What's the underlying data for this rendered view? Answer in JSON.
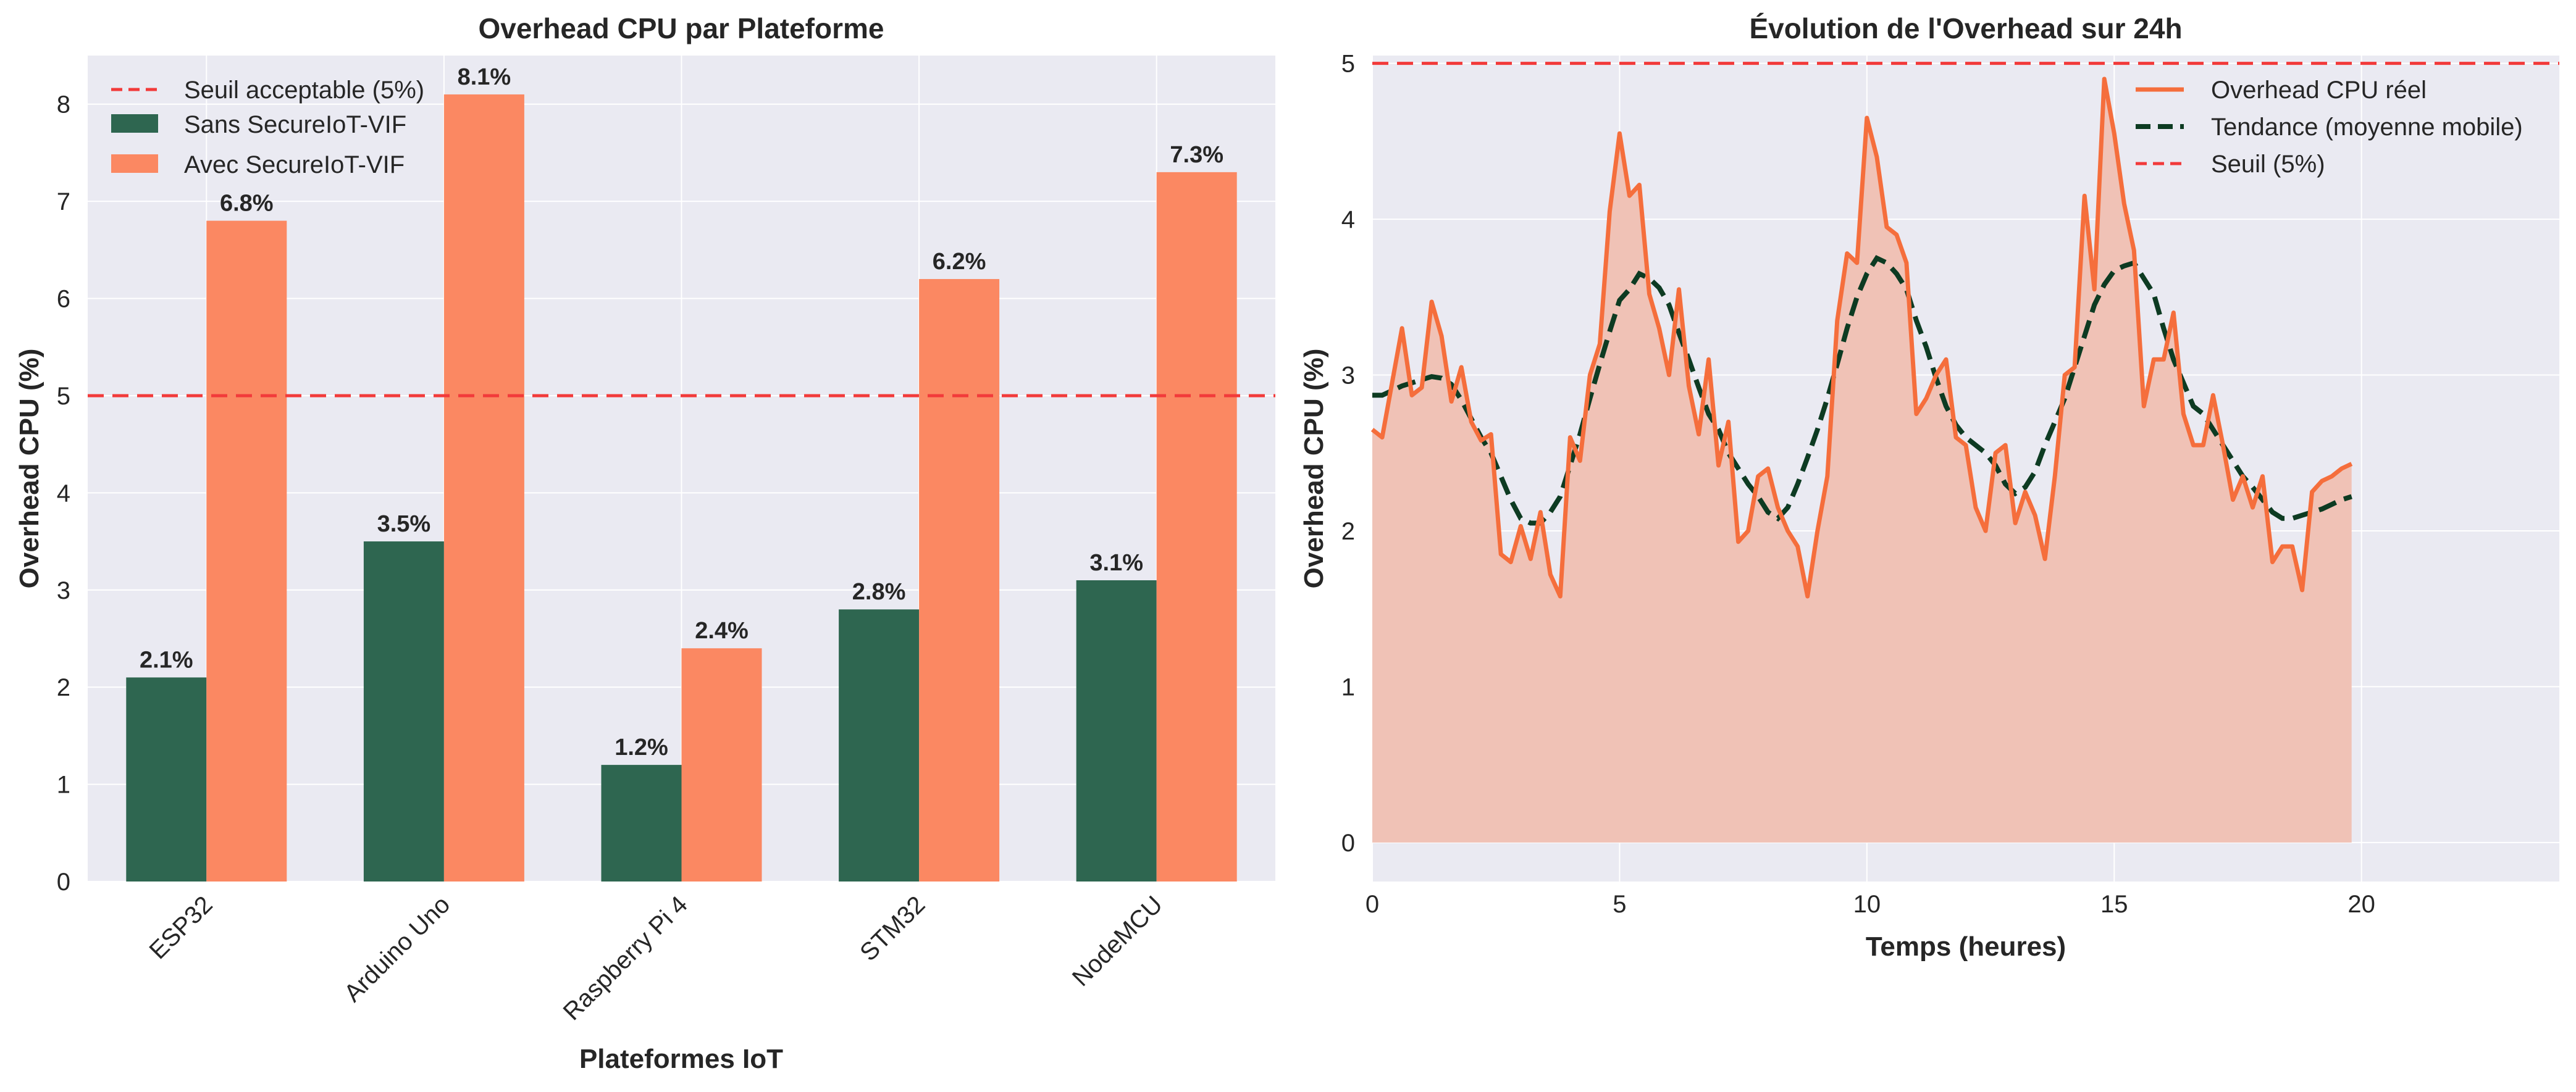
{
  "colors": {
    "axes_bg": "#eaeaf2",
    "grid": "#ffffff",
    "sans": "#2e6650",
    "avec": "#fb8862",
    "threshold": "#f23a3a",
    "overhead_line": "#f56e3c",
    "overhead_fill": "#f0c2b6",
    "trend": "#0d3b22"
  },
  "chart_data": [
    {
      "type": "bar",
      "title": "Overhead CPU par Plateforme",
      "xlabel": "Plateformes IoT",
      "ylabel": "Overhead CPU (%)",
      "ylim": [
        0,
        8.5
      ],
      "yticks": [
        "0",
        "1",
        "2",
        "3",
        "4",
        "5",
        "6",
        "7",
        "8"
      ],
      "categories": [
        "ESP32",
        "Arduino Uno",
        "Raspberry Pi 4",
        "STM32",
        "NodeMCU"
      ],
      "series": [
        {
          "name": "Sans SecureIoT-VIF",
          "values": [
            2.1,
            3.5,
            1.2,
            2.8,
            3.1
          ],
          "labels": [
            "2.1%",
            "3.5%",
            "1.2%",
            "2.8%",
            "3.1%"
          ]
        },
        {
          "name": "Avec SecureIoT-VIF",
          "values": [
            6.8,
            8.1,
            2.4,
            6.2,
            7.3
          ],
          "labels": [
            "6.8%",
            "8.1%",
            "2.4%",
            "6.2%",
            "7.3%"
          ]
        }
      ],
      "threshold": {
        "name": "Seuil acceptable (5%)",
        "value": 5
      },
      "legend_loc": "upper-left",
      "grid": true
    },
    {
      "type": "line",
      "title": "Évolution de l'Overhead sur 24h",
      "xlabel": "Temps (heures)",
      "ylabel": "Overhead CPU (%)",
      "xlim": [
        0,
        24
      ],
      "ylim": [
        -0.25,
        5.05
      ],
      "xticks": [
        "0",
        "5",
        "10",
        "15",
        "20"
      ],
      "yticks": [
        "0",
        "1",
        "2",
        "3",
        "4",
        "5"
      ],
      "x_start": 0,
      "x_step": 0.2,
      "series": [
        {
          "name": "Overhead CPU réel",
          "values": [
            2.65,
            2.6,
            2.95,
            3.3,
            2.87,
            2.92,
            3.47,
            3.25,
            2.83,
            3.05,
            2.7,
            2.58,
            2.62,
            1.85,
            1.8,
            2.03,
            1.82,
            2.12,
            1.72,
            1.58,
            2.6,
            2.45,
            3.0,
            3.2,
            4.05,
            4.55,
            4.15,
            4.22,
            3.52,
            3.3,
            3.0,
            3.55,
            2.93,
            2.62,
            3.1,
            2.42,
            2.7,
            1.93,
            2.0,
            2.35,
            2.4,
            2.15,
            2.0,
            1.9,
            1.58,
            2.0,
            2.35,
            3.35,
            3.78,
            3.72,
            4.65,
            4.4,
            3.95,
            3.9,
            3.72,
            2.75,
            2.85,
            3.0,
            3.1,
            2.6,
            2.55,
            2.15,
            2.0,
            2.5,
            2.55,
            2.05,
            2.25,
            2.1,
            1.82,
            2.35,
            3.0,
            3.05,
            4.15,
            3.55,
            4.9,
            4.55,
            4.1,
            3.8,
            2.8,
            3.1,
            3.1,
            3.4,
            2.75,
            2.55,
            2.55,
            2.87,
            2.55,
            2.2,
            2.35,
            2.15,
            2.35,
            1.8,
            1.9,
            1.9,
            1.62,
            2.25,
            2.32,
            2.35,
            2.4,
            2.43
          ]
        },
        {
          "name": "Tendance (moyenne mobile)",
          "values": [
            2.87,
            2.87,
            2.9,
            2.93,
            2.95,
            2.97,
            2.99,
            2.98,
            2.94,
            2.84,
            2.72,
            2.6,
            2.5,
            2.35,
            2.2,
            2.08,
            2.05,
            2.05,
            2.12,
            2.22,
            2.42,
            2.62,
            2.85,
            3.07,
            3.28,
            3.48,
            3.55,
            3.65,
            3.62,
            3.56,
            3.45,
            3.27,
            3.1,
            2.92,
            2.75,
            2.65,
            2.5,
            2.4,
            2.3,
            2.22,
            2.12,
            2.08,
            2.15,
            2.3,
            2.47,
            2.65,
            2.85,
            3.07,
            3.3,
            3.5,
            3.65,
            3.75,
            3.72,
            3.65,
            3.55,
            3.35,
            3.18,
            2.98,
            2.8,
            2.68,
            2.6,
            2.55,
            2.5,
            2.42,
            2.3,
            2.24,
            2.28,
            2.38,
            2.55,
            2.7,
            2.85,
            3.05,
            3.25,
            3.45,
            3.58,
            3.67,
            3.7,
            3.72,
            3.62,
            3.52,
            3.3,
            3.1,
            2.95,
            2.8,
            2.75,
            2.65,
            2.55,
            2.45,
            2.35,
            2.28,
            2.2,
            2.12,
            2.08,
            2.08,
            2.1,
            2.12,
            2.14,
            2.17,
            2.2,
            2.22
          ]
        }
      ],
      "threshold": {
        "name": "Seuil (5%)",
        "value": 5
      },
      "legend_loc": "upper-right",
      "grid": true
    }
  ]
}
